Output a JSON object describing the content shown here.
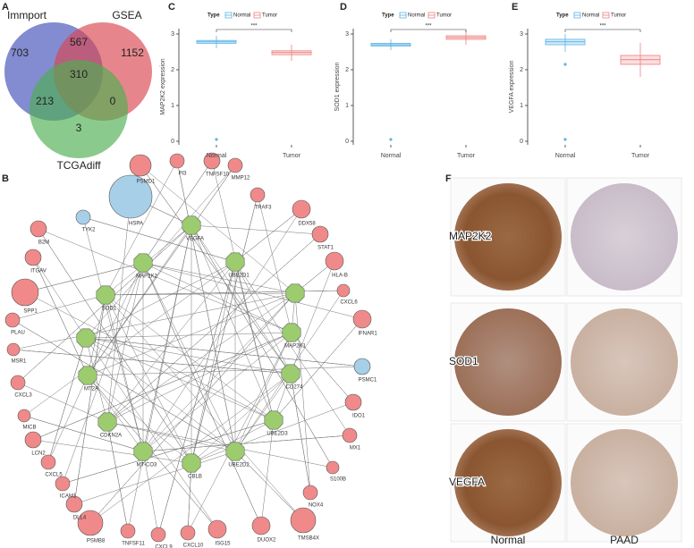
{
  "panel_labels": [
    "A",
    "B",
    "C",
    "D",
    "E",
    "F"
  ],
  "venn": {
    "sets": [
      "Immport",
      "GSEA",
      "TCGAdiff"
    ],
    "regions": {
      "immport_only": 703,
      "immport_gsea": 567,
      "gsea_only": 1152,
      "all": 310,
      "immport_tcga": 213,
      "gsea_tcga": 0,
      "tcga_only": 3
    }
  },
  "chart_data": [
    {
      "type": "box",
      "legend_title": "Type",
      "ylabel": "MAP2K2 expression",
      "categories": [
        "Normal",
        "Tumor"
      ],
      "colors": [
        "#5ab4e5",
        "#f08080"
      ],
      "boxes": [
        {
          "min": 2.6,
          "q1": 2.74,
          "median": 2.78,
          "q3": 2.82,
          "max": 2.95,
          "outliers": [
            0.05
          ]
        },
        {
          "min": 2.25,
          "q1": 2.42,
          "median": 2.48,
          "q3": 2.53,
          "max": 2.7,
          "outliers": []
        }
      ],
      "significance": "***",
      "ylim": [
        -0.1,
        3.15
      ],
      "yticks": [
        0,
        1,
        2,
        3
      ]
    },
    {
      "type": "box",
      "legend_title": "Type",
      "ylabel": "SOD1 expression",
      "categories": [
        "Normal",
        "Tumor"
      ],
      "colors": [
        "#5ab4e5",
        "#f08080"
      ],
      "boxes": [
        {
          "min": 2.55,
          "q1": 2.66,
          "median": 2.7,
          "q3": 2.74,
          "max": 2.85,
          "outliers": [
            0.05
          ]
        },
        {
          "min": 2.7,
          "q1": 2.85,
          "median": 2.9,
          "q3": 2.95,
          "max": 3.1,
          "outliers": []
        }
      ],
      "significance": "***",
      "ylim": [
        -0.1,
        3.15
      ],
      "yticks": [
        0,
        1,
        2,
        3
      ]
    },
    {
      "type": "box",
      "legend_title": "Type",
      "ylabel": "VEGFA expression",
      "categories": [
        "Normal",
        "Tumor"
      ],
      "colors": [
        "#5ab4e5",
        "#f08080"
      ],
      "boxes": [
        {
          "min": 2.5,
          "q1": 2.7,
          "median": 2.78,
          "q3": 2.85,
          "max": 3.0,
          "outliers": [
            2.15,
            0.05
          ]
        },
        {
          "min": 1.8,
          "q1": 2.15,
          "median": 2.28,
          "q3": 2.4,
          "max": 2.75,
          "outliers": []
        }
      ],
      "significance": "***",
      "ylim": [
        -0.1,
        3.15
      ],
      "yticks": [
        0,
        1,
        2,
        3
      ]
    }
  ],
  "network": {
    "hubs": [
      "VEGFA",
      "MAP2K2",
      "UBE2D1",
      "SOD1",
      "MAP2K1",
      "CD274",
      "MT2A",
      "CDKN2A",
      "UBE2D3",
      "MT-CO3",
      "UBE2D2",
      "CBLB"
    ],
    "nodes": [
      "HSPA",
      "PSMD1",
      "PI3",
      "TNFSF10",
      "MMP12",
      "TRAF3",
      "DDX58",
      "STAT1",
      "HLA-B",
      "CXCL6",
      "IFNAR1",
      "PSMC1",
      "IDO1",
      "MX1",
      "S100B",
      "NOX4",
      "TMSB4X",
      "DUOX2",
      "ISG15",
      "CXCL10",
      "CXCL9",
      "TNFSF11",
      "PSMB8",
      "DLL4",
      "ICAM1",
      "CXCL5",
      "LCN2",
      "MICB",
      "CXCL3",
      "MSR1",
      "PLAU",
      "SPP1",
      "ITGAV",
      "B2M",
      "TYK2"
    ]
  },
  "ihc": {
    "rows": [
      "MAP2K2",
      "SOD1",
      "VEGFA"
    ],
    "columns": [
      "Normal",
      "PAAD"
    ]
  }
}
